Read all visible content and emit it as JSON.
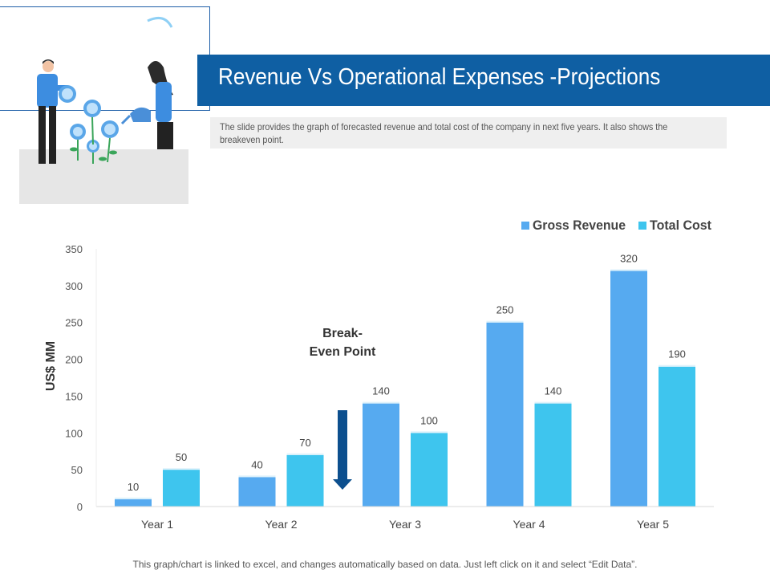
{
  "slide": {
    "title": "Revenue Vs Operational Expenses -Projections",
    "description": "The slide provides the graph of forecasted revenue and total cost of the company in next five years. It also shows the breakeven  point.",
    "footer": "This graph/chart is linked to excel, and changes automatically based on data. Just left click on it and select “Edit Data”."
  },
  "colors": {
    "title_band": "#0f5fa3",
    "gross_revenue": "#56aaf0",
    "total_cost": "#3ec5ee",
    "arrow": "#0c4f8e"
  },
  "chart_data": {
    "type": "bar",
    "title": "",
    "xlabel": "",
    "ylabel": "US$ MM",
    "ylim": [
      0,
      350
    ],
    "yticks": [
      0,
      50,
      100,
      150,
      200,
      250,
      300,
      350
    ],
    "categories": [
      "Year 1",
      "Year 2",
      "Year 3",
      "Year 4",
      "Year 5"
    ],
    "series": [
      {
        "name": "Gross Revenue",
        "values": [
          10,
          40,
          140,
          250,
          320
        ]
      },
      {
        "name": "Total Cost",
        "values": [
          50,
          70,
          100,
          140,
          190
        ]
      }
    ],
    "legend_position": "top-right",
    "grid": false,
    "annotation": {
      "text_line1": "Break-",
      "text_line2": "Even Point",
      "points_to": "Year 3"
    }
  }
}
